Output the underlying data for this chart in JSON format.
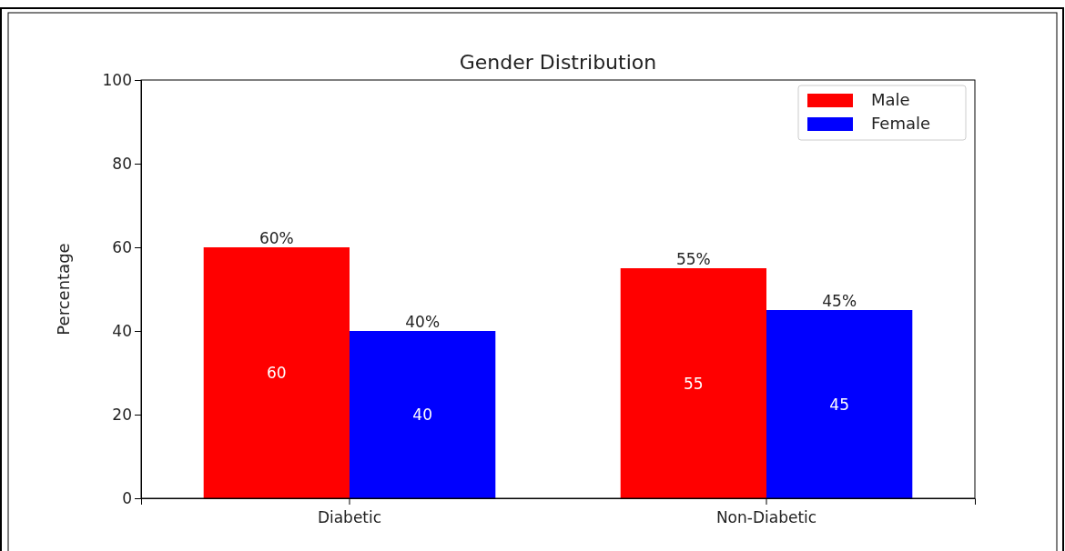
{
  "chart_data": {
    "type": "bar",
    "title": "Gender Distribution",
    "ylabel": "Percentage",
    "categories": [
      "Diabetic",
      "Non-Diabetic"
    ],
    "series": [
      {
        "name": "Male",
        "color": "#ff0000",
        "values": [
          60,
          55
        ]
      },
      {
        "name": "Female",
        "color": "#0000ff",
        "values": [
          40,
          45
        ]
      }
    ],
    "annotations": [
      "60%",
      "55%",
      "40%",
      "45%"
    ],
    "ylim": [
      0,
      100
    ],
    "yticks": [
      0,
      20,
      40,
      60,
      80,
      100
    ],
    "data_labels": true,
    "legend": "top right",
    "grid": false
  }
}
